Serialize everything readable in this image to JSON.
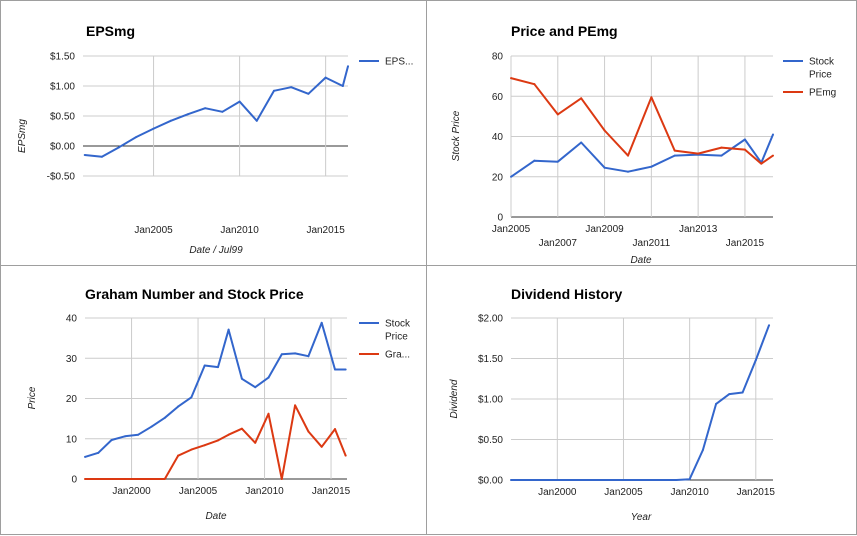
{
  "chart_data": [
    {
      "type": "line",
      "title": "EPSmg",
      "ylabel": "EPSmg",
      "xlabel": "Date / Jul99",
      "ylim": [
        -0.5,
        1.5
      ],
      "yticks": [
        -0.5,
        0,
        0.5,
        1.0,
        1.5
      ],
      "ytick_labels": [
        "-$0.50",
        "$0.00",
        "$0.50",
        "$1.00",
        "$1.50"
      ],
      "xlim": [
        2000.9,
        2016.3
      ],
      "xticks": [
        2005,
        2010,
        2015
      ],
      "xtick_labels": [
        "Jan2005",
        "Jan2010",
        "Jan2015"
      ],
      "x_label_rows": [
        0,
        0,
        0
      ],
      "zero_line": true,
      "grid": true,
      "legend": "right",
      "series": [
        {
          "name": "EPS...",
          "color": "#3366cc",
          "x": [
            2001,
            2002,
            2003,
            2004,
            2005,
            2006,
            2007,
            2008,
            2009,
            2010,
            2011,
            2012,
            2013,
            2014,
            2015,
            2016,
            2016.3
          ],
          "y": [
            -0.15,
            -0.18,
            -0.02,
            0.15,
            0.29,
            0.42,
            0.53,
            0.63,
            0.57,
            0.74,
            0.42,
            0.92,
            0.98,
            0.87,
            1.14,
            1.0,
            1.33
          ]
        }
      ]
    },
    {
      "type": "line",
      "title": "Price and PEmg",
      "ylabel": "Stock Price",
      "xlabel": "Date",
      "ylim": [
        0,
        80
      ],
      "yticks": [
        0,
        20,
        40,
        60,
        80
      ],
      "ytick_labels": [
        "0",
        "20",
        "40",
        "60",
        "80"
      ],
      "xlim": [
        2005,
        2016.2
      ],
      "xticks": [
        2005,
        2007,
        2009,
        2011,
        2013,
        2015
      ],
      "xtick_labels": [
        "Jan2005",
        "Jan2007",
        "Jan2009",
        "Jan2011",
        "Jan2013",
        "Jan2015"
      ],
      "x_label_rows": [
        0,
        1,
        0,
        1,
        0,
        1
      ],
      "zero_line": false,
      "grid": true,
      "legend": "right",
      "series": [
        {
          "name": "Stock Price",
          "color": "#3366cc",
          "x": [
            2005,
            2006,
            2007,
            2008,
            2009,
            2010,
            2011,
            2012,
            2013,
            2014,
            2015,
            2015.7,
            2016.2
          ],
          "y": [
            20,
            28,
            27.5,
            37,
            24.5,
            22.5,
            25,
            30.5,
            31,
            30.5,
            38.5,
            27,
            41
          ]
        },
        {
          "name": "PEmg",
          "color": "#dc3912",
          "x": [
            2005,
            2006,
            2007,
            2008,
            2009,
            2010,
            2011,
            2012,
            2013,
            2014,
            2015,
            2015.7,
            2016.2
          ],
          "y": [
            69,
            66,
            51,
            59,
            43,
            30.5,
            59.5,
            33,
            31.5,
            34.5,
            33.5,
            26.5,
            30.5
          ]
        }
      ]
    },
    {
      "type": "line",
      "title": "Graham Number and Stock Price",
      "ylabel": "Price",
      "xlabel": "Date",
      "ylim": [
        0,
        40
      ],
      "yticks": [
        0,
        10,
        20,
        30,
        40
      ],
      "ytick_labels": [
        "0",
        "10",
        "20",
        "30",
        "40"
      ],
      "xlim": [
        1996.5,
        2016.2
      ],
      "xticks": [
        2000,
        2005,
        2010,
        2015
      ],
      "xtick_labels": [
        "Jan2000",
        "Jan2005",
        "Jan2010",
        "Jan2015"
      ],
      "x_label_rows": [
        0,
        0,
        0,
        0
      ],
      "zero_line": false,
      "grid": true,
      "legend": "right",
      "series": [
        {
          "name": "Stock Price",
          "color": "#3366cc",
          "x": [
            1996.5,
            1997.5,
            1998.5,
            1999.5,
            2000.5,
            2001.5,
            2002.5,
            2003.5,
            2004.5,
            2005.5,
            2006.5,
            2007.3,
            2008.3,
            2009.3,
            2010.3,
            2011.3,
            2012.3,
            2013.3,
            2014.3,
            2015.3,
            2016.1
          ],
          "y": [
            5.5,
            6.5,
            9.7,
            10.6,
            11.0,
            13.0,
            15.2,
            18.0,
            20.3,
            28.2,
            27.8,
            37.1,
            24.9,
            22.8,
            25.2,
            31.0,
            31.2,
            30.5,
            38.8,
            27.2,
            27.2
          ]
        },
        {
          "name": "Gra...",
          "color": "#dc3912",
          "x": [
            1996.5,
            1997.5,
            1998.5,
            1999.5,
            2000.5,
            2001.5,
            2002.5,
            2003.5,
            2004.5,
            2005.5,
            2006.5,
            2007.3,
            2008.3,
            2009.3,
            2010.3,
            2011.3,
            2012.3,
            2013.3,
            2014.3,
            2015.3,
            2016.1
          ],
          "y": [
            0,
            0,
            0,
            0,
            0,
            0,
            0,
            5.8,
            7.3,
            8.4,
            9.6,
            11.0,
            12.5,
            9.0,
            16.2,
            0,
            18.3,
            11.8,
            8.0,
            12.4,
            5.8
          ]
        }
      ]
    },
    {
      "type": "line",
      "title": "Dividend History",
      "ylabel": "Dividend",
      "xlabel": "Year",
      "ylim": [
        0,
        2
      ],
      "yticks": [
        0,
        0.5,
        1.0,
        1.5,
        2.0
      ],
      "ytick_labels": [
        "$0.00",
        "$0.50",
        "$1.00",
        "$1.50",
        "$2.00"
      ],
      "xlim": [
        1996.5,
        2016.3
      ],
      "xticks": [
        2000,
        2005,
        2010,
        2015
      ],
      "xtick_labels": [
        "Jan2000",
        "Jan2005",
        "Jan2010",
        "Jan2015"
      ],
      "x_label_rows": [
        0,
        0,
        0,
        0
      ],
      "zero_line": false,
      "grid": true,
      "legend": "none",
      "series": [
        {
          "name": "",
          "color": "#3366cc",
          "x": [
            1996.5,
            2000,
            2005,
            2009,
            2010,
            2011,
            2012,
            2013,
            2014,
            2015,
            2016
          ],
          "y": [
            0,
            0,
            0,
            0,
            0.01,
            0.37,
            0.94,
            1.06,
            1.08,
            1.48,
            1.91
          ]
        }
      ]
    }
  ]
}
